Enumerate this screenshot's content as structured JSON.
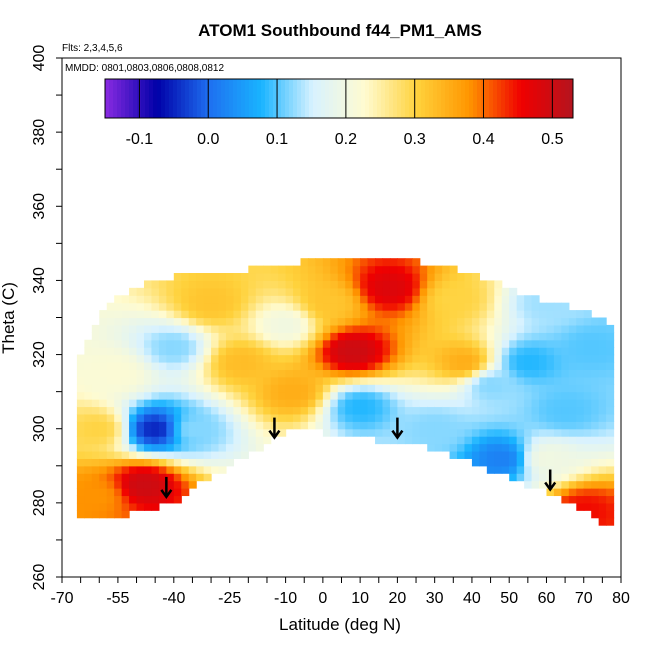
{
  "chart_data": {
    "type": "heatmap",
    "title": "ATOM1 Southbound f44_PM1_AMS",
    "flights_label": "Flts: 2,3,4,5,6",
    "dates_label": "MMDD: 0801,0803,0806,0808,0812",
    "xlabel": "Latitude (deg N)",
    "ylabel": "Theta (C)",
    "xlim": [
      -70,
      80
    ],
    "ylim": [
      260,
      400
    ],
    "x_ticks": [
      -70,
      -55,
      -40,
      -25,
      -10,
      0,
      10,
      20,
      30,
      40,
      50,
      60,
      70,
      80
    ],
    "y_ticks": [
      260,
      280,
      300,
      320,
      340,
      360,
      380,
      400
    ],
    "colorbar": {
      "ticks": [
        -0.1,
        0.0,
        0.1,
        0.2,
        0.3,
        0.4,
        0.5
      ],
      "range": [
        -0.15,
        0.53
      ],
      "colors": [
        "#8a2be2",
        "#0000a8",
        "#1e6ff0",
        "#19b4ff",
        "#d8f2ff",
        "#fffbd0",
        "#ffd23c",
        "#ff9600",
        "#f00000",
        "#b4141e"
      ]
    },
    "arrows_lat": [
      -42,
      -13,
      20,
      61
    ],
    "arrows_theta_top": [
      287,
      303,
      303,
      289
    ],
    "field_extent": {
      "latitude_boundary": [
        -66,
        -60,
        -55,
        -50,
        -45,
        -40,
        -35,
        -30,
        -25,
        -20,
        -15,
        -10,
        -5,
        0,
        5,
        10,
        15,
        20,
        25,
        30,
        35,
        40,
        45,
        50,
        55,
        60,
        65,
        70,
        75,
        78
      ],
      "theta_top": [
        318,
        330,
        336,
        338,
        340,
        341,
        341,
        342,
        342,
        343,
        344,
        344,
        345,
        346,
        346,
        346,
        346,
        346,
        345,
        344,
        343,
        342,
        340,
        338,
        336,
        334,
        333,
        332,
        330,
        326
      ],
      "theta_bottom": [
        276,
        276,
        276,
        278,
        279,
        280,
        284,
        287,
        290,
        293,
        296,
        299,
        300,
        299,
        299,
        298,
        297,
        297,
        296,
        294,
        293,
        291,
        289,
        287,
        285,
        283,
        281,
        278,
        275,
        274
      ]
    },
    "field_features": [
      {
        "lat": 8,
        "theta": 321,
        "value": 0.5
      },
      {
        "lat": 18,
        "theta": 338,
        "value": 0.48
      },
      {
        "lat": -48,
        "theta": 285,
        "value": 0.5
      },
      {
        "lat": -60,
        "theta": 282,
        "value": 0.38
      },
      {
        "lat": 70,
        "theta": 278,
        "value": 0.45
      },
      {
        "lat": -22,
        "theta": 318,
        "value": 0.33
      },
      {
        "lat": -30,
        "theta": 334,
        "value": 0.32
      },
      {
        "lat": 2,
        "theta": 334,
        "value": 0.32
      },
      {
        "lat": 35,
        "theta": 335,
        "value": 0.3
      },
      {
        "lat": 38,
        "theta": 318,
        "value": 0.35
      },
      {
        "lat": -8,
        "theta": 310,
        "value": 0.35
      },
      {
        "lat": -40,
        "theta": 322,
        "value": 0.12
      },
      {
        "lat": -55,
        "theta": 315,
        "value": 0.22
      },
      {
        "lat": -35,
        "theta": 300,
        "value": 0.12
      },
      {
        "lat": -45,
        "theta": 300,
        "value": -0.05
      },
      {
        "lat": 10,
        "theta": 306,
        "value": 0.08
      },
      {
        "lat": 48,
        "theta": 292,
        "value": 0.02
      },
      {
        "lat": 55,
        "theta": 318,
        "value": 0.08
      },
      {
        "lat": 65,
        "theta": 305,
        "value": 0.1
      },
      {
        "lat": 72,
        "theta": 322,
        "value": 0.1
      },
      {
        "lat": 30,
        "theta": 300,
        "value": 0.12
      },
      {
        "lat": 45,
        "theta": 312,
        "value": 0.12
      },
      {
        "lat": 60,
        "theta": 334,
        "value": 0.13
      },
      {
        "lat": -10,
        "theta": 328,
        "value": 0.2
      },
      {
        "lat": 60,
        "theta": 292,
        "value": 0.2
      },
      {
        "lat": -60,
        "theta": 300,
        "value": 0.3
      }
    ]
  }
}
